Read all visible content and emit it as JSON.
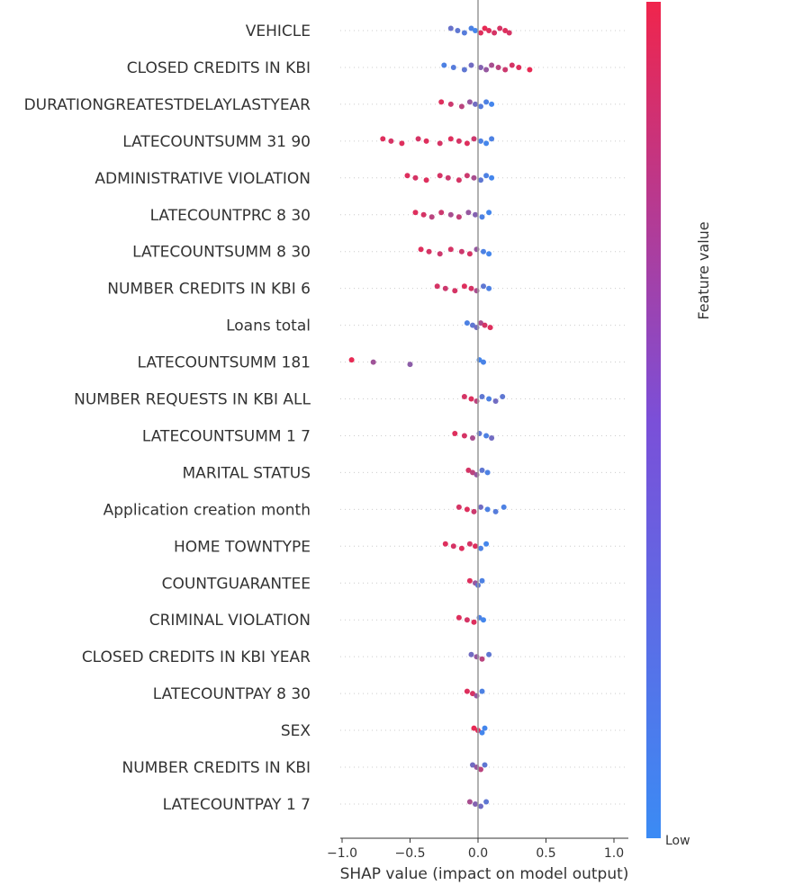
{
  "chart_data": {
    "type": "scatter",
    "subtype": "shap-beeswarm",
    "title": "",
    "xlabel": "SHAP value (impact on model output)",
    "ylabel": "",
    "xlim": [
      -1.0,
      1.1
    ],
    "xticks": [
      -1.0,
      -0.5,
      0.0,
      0.5,
      1.0
    ],
    "xtick_labels": [
      "−1.0",
      "−0.5",
      "0.0",
      "0.5",
      "1.0"
    ],
    "grid": false,
    "colorbar": {
      "title": "Feature value",
      "low_label": "Low",
      "high_label": "",
      "low_color": "#3b8bf4",
      "high_color": "#f0254c"
    },
    "features": [
      {
        "name": "VEHICLE",
        "points": [
          [
            -0.2,
            0.25
          ],
          [
            -0.15,
            0.2
          ],
          [
            -0.1,
            0.15
          ],
          [
            -0.05,
            0.1
          ],
          [
            -0.02,
            0.05
          ],
          [
            0.02,
            0.9
          ],
          [
            0.05,
            0.95
          ],
          [
            0.08,
            0.9
          ],
          [
            0.12,
            0.85
          ],
          [
            0.16,
            0.85
          ],
          [
            0.2,
            0.9
          ],
          [
            0.23,
            0.85
          ]
        ]
      },
      {
        "name": "CLOSED CREDITS IN KBI",
        "points": [
          [
            -0.25,
            0.1
          ],
          [
            -0.18,
            0.15
          ],
          [
            -0.1,
            0.2
          ],
          [
            -0.05,
            0.3
          ],
          [
            0.02,
            0.4
          ],
          [
            0.06,
            0.5
          ],
          [
            0.1,
            0.6
          ],
          [
            0.15,
            0.7
          ],
          [
            0.2,
            0.8
          ],
          [
            0.25,
            0.85
          ],
          [
            0.3,
            0.9
          ],
          [
            0.38,
            0.95
          ]
        ]
      },
      {
        "name": "DURATIONGREATESTDELAYLASTYEAR",
        "points": [
          [
            -0.27,
            0.9
          ],
          [
            -0.2,
            0.8
          ],
          [
            -0.12,
            0.7
          ],
          [
            -0.06,
            0.5
          ],
          [
            -0.02,
            0.3
          ],
          [
            0.02,
            0.15
          ],
          [
            0.06,
            0.1
          ],
          [
            0.1,
            0.05
          ]
        ]
      },
      {
        "name": "LATECOUNTSUMM 31 90",
        "points": [
          [
            -0.7,
            0.9
          ],
          [
            -0.64,
            0.85
          ],
          [
            -0.56,
            0.9
          ],
          [
            -0.44,
            0.85
          ],
          [
            -0.38,
            0.9
          ],
          [
            -0.28,
            0.85
          ],
          [
            -0.2,
            0.9
          ],
          [
            -0.14,
            0.85
          ],
          [
            -0.08,
            0.9
          ],
          [
            -0.03,
            0.8
          ],
          [
            0.02,
            0.1
          ],
          [
            0.06,
            0.05
          ],
          [
            0.1,
            0.1
          ]
        ]
      },
      {
        "name": "ADMINISTRATIVE VIOLATION",
        "points": [
          [
            -0.52,
            0.9
          ],
          [
            -0.46,
            0.85
          ],
          [
            -0.38,
            0.9
          ],
          [
            -0.28,
            0.85
          ],
          [
            -0.22,
            0.8
          ],
          [
            -0.14,
            0.85
          ],
          [
            -0.08,
            0.8
          ],
          [
            -0.03,
            0.6
          ],
          [
            0.02,
            0.2
          ],
          [
            0.06,
            0.1
          ],
          [
            0.1,
            0.05
          ]
        ]
      },
      {
        "name": "LATECOUNTPRC 8 30",
        "points": [
          [
            -0.46,
            0.9
          ],
          [
            -0.4,
            0.85
          ],
          [
            -0.34,
            0.7
          ],
          [
            -0.27,
            0.8
          ],
          [
            -0.2,
            0.6
          ],
          [
            -0.14,
            0.75
          ],
          [
            -0.07,
            0.5
          ],
          [
            -0.02,
            0.4
          ],
          [
            0.03,
            0.1
          ],
          [
            0.08,
            0.05
          ]
        ]
      },
      {
        "name": "LATECOUNTSUMM 8 30",
        "points": [
          [
            -0.42,
            0.9
          ],
          [
            -0.36,
            0.85
          ],
          [
            -0.28,
            0.8
          ],
          [
            -0.2,
            0.85
          ],
          [
            -0.12,
            0.8
          ],
          [
            -0.06,
            0.85
          ],
          [
            -0.01,
            0.5
          ],
          [
            0.04,
            0.1
          ],
          [
            0.08,
            0.05
          ]
        ]
      },
      {
        "name": "NUMBER CREDITS IN KBI 6",
        "points": [
          [
            -0.3,
            0.85
          ],
          [
            -0.24,
            0.8
          ],
          [
            -0.17,
            0.85
          ],
          [
            -0.1,
            0.9
          ],
          [
            -0.05,
            0.85
          ],
          [
            -0.01,
            0.6
          ],
          [
            0.04,
            0.2
          ],
          [
            0.08,
            0.1
          ]
        ]
      },
      {
        "name": "Loans total",
        "points": [
          [
            -0.08,
            0.1
          ],
          [
            -0.04,
            0.2
          ],
          [
            -0.01,
            0.3
          ],
          [
            0.02,
            0.6
          ],
          [
            0.05,
            0.85
          ],
          [
            0.09,
            0.9
          ]
        ]
      },
      {
        "name": "LATECOUNTSUMM 181",
        "points": [
          [
            -0.93,
            0.95
          ],
          [
            -0.77,
            0.55
          ],
          [
            -0.5,
            0.45
          ],
          [
            0.01,
            0.05
          ],
          [
            0.04,
            0.08
          ]
        ]
      },
      {
        "name": "NUMBER REQUESTS IN KBI ALL",
        "points": [
          [
            -0.1,
            0.85
          ],
          [
            -0.05,
            0.9
          ],
          [
            -0.01,
            0.7
          ],
          [
            0.03,
            0.2
          ],
          [
            0.08,
            0.1
          ],
          [
            0.13,
            0.3
          ],
          [
            0.18,
            0.2
          ]
        ]
      },
      {
        "name": "LATECOUNTSUMM 1 7",
        "points": [
          [
            -0.17,
            0.9
          ],
          [
            -0.1,
            0.85
          ],
          [
            -0.04,
            0.6
          ],
          [
            0.01,
            0.2
          ],
          [
            0.06,
            0.1
          ],
          [
            0.1,
            0.3
          ]
        ]
      },
      {
        "name": "MARITAL STATUS",
        "points": [
          [
            -0.07,
            0.85
          ],
          [
            -0.04,
            0.7
          ],
          [
            -0.01,
            0.5
          ],
          [
            0.03,
            0.2
          ],
          [
            0.07,
            0.1
          ]
        ]
      },
      {
        "name": "Application creation month",
        "points": [
          [
            -0.14,
            0.85
          ],
          [
            -0.08,
            0.9
          ],
          [
            -0.03,
            0.8
          ],
          [
            0.02,
            0.3
          ],
          [
            0.07,
            0.1
          ],
          [
            0.13,
            0.15
          ],
          [
            0.19,
            0.1
          ]
        ]
      },
      {
        "name": "HOME TOWNTYPE",
        "points": [
          [
            -0.24,
            0.9
          ],
          [
            -0.18,
            0.85
          ],
          [
            -0.12,
            0.9
          ],
          [
            -0.06,
            0.85
          ],
          [
            -0.02,
            0.9
          ],
          [
            0.02,
            0.1
          ],
          [
            0.06,
            0.05
          ]
        ]
      },
      {
        "name": "COUNTGUARANTEE",
        "points": [
          [
            -0.06,
            0.9
          ],
          [
            -0.02,
            0.5
          ],
          [
            0.0,
            0.2
          ],
          [
            0.03,
            0.1
          ]
        ]
      },
      {
        "name": "CRIMINAL VIOLATION",
        "points": [
          [
            -0.14,
            0.9
          ],
          [
            -0.08,
            0.85
          ],
          [
            -0.03,
            0.9
          ],
          [
            0.01,
            0.1
          ],
          [
            0.04,
            0.05
          ]
        ]
      },
      {
        "name": "CLOSED CREDITS IN KBI YEAR",
        "points": [
          [
            -0.05,
            0.3
          ],
          [
            -0.01,
            0.5
          ],
          [
            0.03,
            0.7
          ],
          [
            0.08,
            0.2
          ]
        ]
      },
      {
        "name": "LATECOUNTPAY 8 30",
        "points": [
          [
            -0.08,
            0.9
          ],
          [
            -0.04,
            0.85
          ],
          [
            -0.01,
            0.5
          ],
          [
            0.03,
            0.1
          ]
        ]
      },
      {
        "name": "SEX",
        "points": [
          [
            -0.03,
            0.95
          ],
          [
            0.0,
            0.9
          ],
          [
            0.03,
            0.05
          ],
          [
            0.05,
            0.05
          ]
        ]
      },
      {
        "name": "NUMBER CREDITS IN KBI",
        "points": [
          [
            -0.04,
            0.3
          ],
          [
            -0.01,
            0.5
          ],
          [
            0.02,
            0.7
          ],
          [
            0.05,
            0.2
          ]
        ]
      },
      {
        "name": "LATECOUNTPAY 1 7",
        "points": [
          [
            -0.06,
            0.6
          ],
          [
            -0.02,
            0.4
          ],
          [
            0.02,
            0.3
          ],
          [
            0.06,
            0.2
          ]
        ]
      }
    ]
  }
}
